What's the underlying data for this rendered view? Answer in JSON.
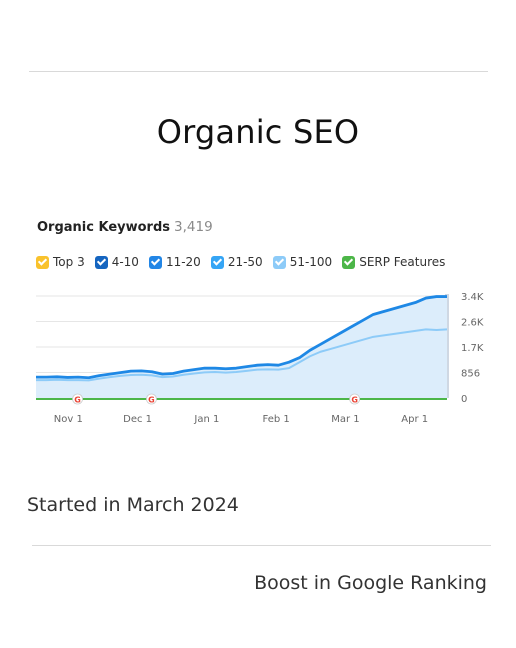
{
  "page": {
    "title": "Organic SEO",
    "caption_left": "Started in March 2024",
    "caption_right": "Boost in Google Ranking"
  },
  "chart_data": {
    "type": "area",
    "title": "Organic Keywords",
    "total": "3,419",
    "legend": [
      {
        "label": "Top 3",
        "color": "#f9c22c"
      },
      {
        "label": "4-10",
        "color": "#1565c0"
      },
      {
        "label": "11-20",
        "color": "#2286e6"
      },
      {
        "label": "21-50",
        "color": "#35a5f5"
      },
      {
        "label": "51-100",
        "color": "#8dcbf8"
      },
      {
        "label": "SERP Features",
        "color": "#4cb648"
      }
    ],
    "x_ticks": [
      "Nov 1",
      "Dec 1",
      "Jan 1",
      "Feb 1",
      "Mar 1",
      "Apr 1"
    ],
    "y_ticks": [
      "3.4K",
      "2.6K",
      "1.7K",
      "856",
      "0"
    ],
    "ylim": [
      0,
      3419
    ],
    "grid": true,
    "x_days": [
      0,
      5,
      10,
      15,
      20,
      25,
      30,
      35,
      40,
      45,
      50,
      55,
      60,
      65,
      70,
      75,
      80,
      85,
      90,
      95,
      100,
      105,
      110,
      115,
      120,
      125,
      130,
      135,
      140,
      145,
      150,
      155,
      160,
      165,
      170,
      175,
      180,
      185,
      190,
      195
    ],
    "series": [
      {
        "name": "4-10",
        "values": [
          700,
          700,
          710,
          690,
          700,
          680,
          750,
          800,
          850,
          900,
          910,
          880,
          800,
          820,
          900,
          950,
          1000,
          1000,
          980,
          1000,
          1050,
          1100,
          1120,
          1100,
          1200,
          1350,
          1600,
          1800,
          2000,
          2200,
          2400,
          2600,
          2800,
          2900,
          3000,
          3100,
          3200,
          3350,
          3400,
          3400
        ]
      },
      {
        "name": "51-100",
        "values": [
          600,
          600,
          610,
          600,
          600,
          590,
          650,
          700,
          740,
          770,
          780,
          760,
          700,
          720,
          780,
          820,
          860,
          870,
          850,
          870,
          910,
          950,
          960,
          950,
          1000,
          1200,
          1400,
          1550,
          1650,
          1750,
          1850,
          1950,
          2050,
          2100,
          2150,
          2200,
          2250,
          2300,
          2280,
          2300
        ]
      }
    ],
    "serp_markers": [
      "G",
      "G",
      "G"
    ]
  }
}
